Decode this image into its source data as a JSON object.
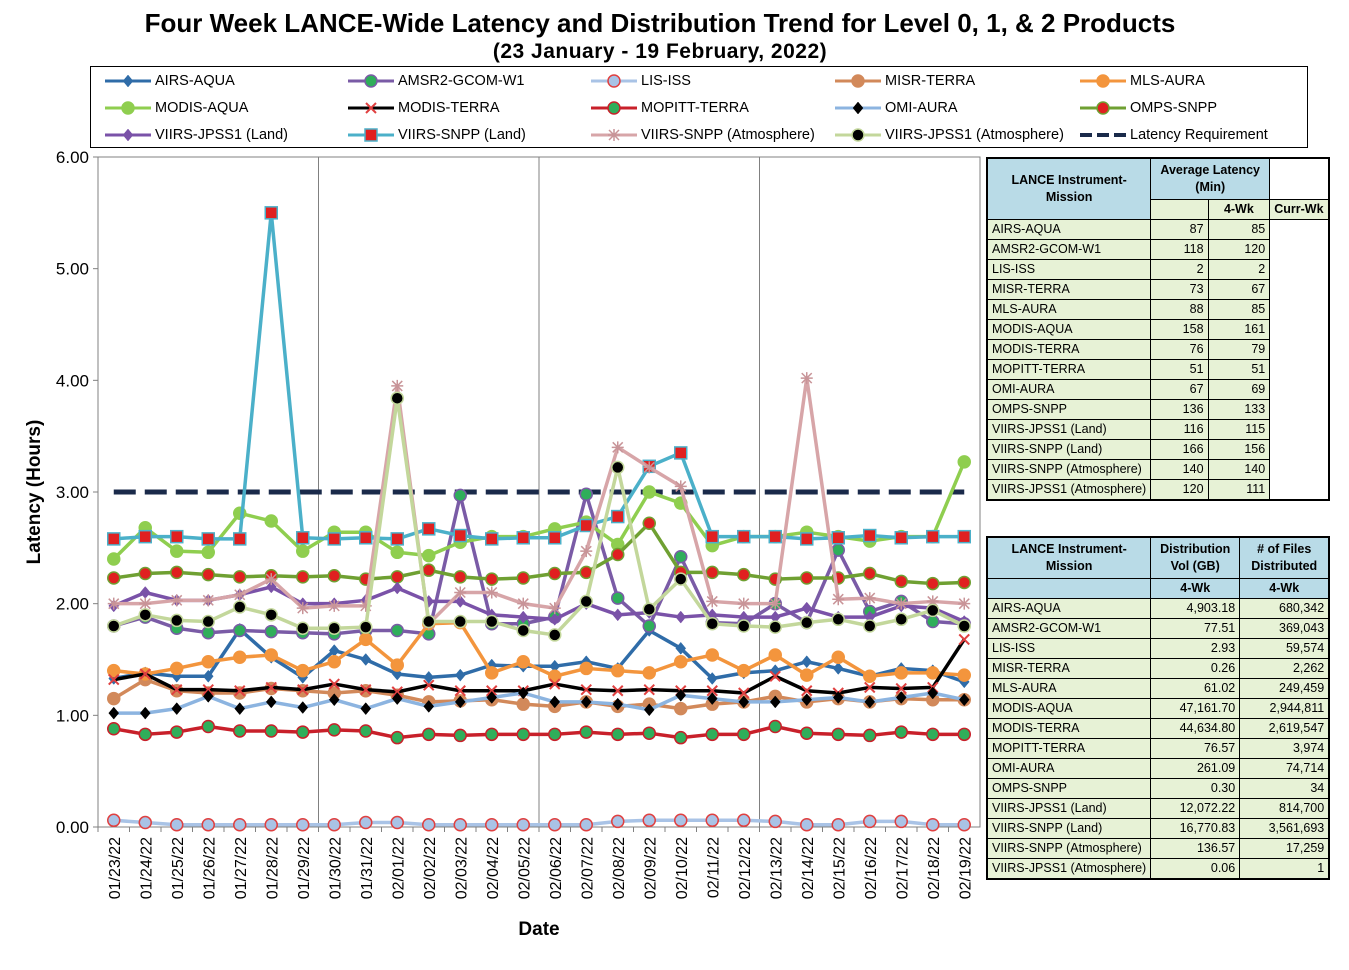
{
  "chart_data": {
    "type": "line",
    "title": "Four Week LANCE-Wide Latency and Distribution Trend for Level 0, 1, & 2 Products",
    "subtitle": "(23  January    -  19  February,  2022)",
    "xlabel": "Date",
    "ylabel": "Latency (Hours)",
    "ylim": [
      0,
      6
    ],
    "yticks": [
      "0.00",
      "1.00",
      "2.00",
      "3.00",
      "4.00",
      "5.00",
      "6.00"
    ],
    "grid": "vertical every 7 days",
    "legend_position": "top",
    "categories": [
      "01/23/22",
      "01/24/22",
      "01/25/22",
      "01/26/22",
      "01/27/22",
      "01/28/22",
      "01/29/22",
      "01/30/22",
      "01/31/22",
      "02/01/22",
      "02/02/22",
      "02/03/22",
      "02/04/22",
      "02/05/22",
      "02/06/22",
      "02/07/22",
      "02/08/22",
      "02/09/22",
      "02/10/22",
      "02/11/22",
      "02/12/22",
      "02/13/22",
      "02/14/22",
      "02/15/22",
      "02/16/22",
      "02/17/22",
      "02/18/22",
      "02/19/22"
    ],
    "series": [
      {
        "name": "AIRS-AQUA",
        "color": "#2f6ca8",
        "marker": "diamond",
        "markerColor": "#2f6ca8",
        "values": [
          1.33,
          1.38,
          1.35,
          1.35,
          1.77,
          1.52,
          1.34,
          1.58,
          1.5,
          1.37,
          1.34,
          1.36,
          1.45,
          1.44,
          1.44,
          1.48,
          1.42,
          1.76,
          1.6,
          1.33,
          1.38,
          1.4,
          1.48,
          1.42,
          1.35,
          1.42,
          1.4,
          1.3
        ]
      },
      {
        "name": "AMSR2-GCOM-W1",
        "color": "#7a5ba6",
        "marker": "circle",
        "markerColor": "#2fae5a",
        "values": [
          1.8,
          1.88,
          1.78,
          1.74,
          1.76,
          1.75,
          1.74,
          1.73,
          1.76,
          1.76,
          1.73,
          2.97,
          1.82,
          1.82,
          1.88,
          2.98,
          2.05,
          1.8,
          2.42,
          1.83,
          1.82,
          2.0,
          1.83,
          2.48,
          1.93,
          2.02,
          1.84,
          1.82
        ]
      },
      {
        "name": "LIS-ISS",
        "color": "#a9c3e6",
        "marker": "circle-open",
        "markerColor": "#e04040",
        "values": [
          0.06,
          0.04,
          0.02,
          0.02,
          0.02,
          0.02,
          0.02,
          0.02,
          0.04,
          0.04,
          0.02,
          0.02,
          0.02,
          0.02,
          0.02,
          0.02,
          0.05,
          0.06,
          0.06,
          0.06,
          0.06,
          0.05,
          0.02,
          0.02,
          0.05,
          0.05,
          0.02,
          0.02
        ]
      },
      {
        "name": "MISR-TERRA",
        "color": "#d2895a",
        "marker": "circle",
        "markerColor": "#d2895a",
        "values": [
          1.15,
          1.32,
          1.22,
          1.2,
          1.2,
          1.24,
          1.22,
          1.2,
          1.22,
          1.18,
          1.12,
          1.13,
          1.14,
          1.1,
          1.08,
          1.12,
          1.08,
          1.1,
          1.06,
          1.1,
          1.12,
          1.17,
          1.12,
          1.15,
          1.12,
          1.15,
          1.14,
          1.14
        ]
      },
      {
        "name": "MLS-AURA",
        "color": "#f3953d",
        "marker": "circle",
        "markerColor": "#f3953d",
        "values": [
          1.4,
          1.37,
          1.42,
          1.48,
          1.52,
          1.54,
          1.4,
          1.48,
          1.68,
          1.45,
          1.82,
          1.83,
          1.38,
          1.48,
          1.35,
          1.42,
          1.4,
          1.38,
          1.48,
          1.54,
          1.4,
          1.54,
          1.36,
          1.52,
          1.35,
          1.38,
          1.38,
          1.36
        ]
      },
      {
        "name": "MODIS-AQUA",
        "color": "#8fce4f",
        "marker": "circle",
        "markerColor": "#8fce4f",
        "values": [
          2.4,
          2.68,
          2.47,
          2.46,
          2.81,
          2.74,
          2.47,
          2.64,
          2.64,
          2.46,
          2.43,
          2.55,
          2.6,
          2.6,
          2.67,
          2.73,
          2.53,
          3.0,
          2.9,
          2.52,
          2.6,
          2.6,
          2.64,
          2.6,
          2.56,
          2.6,
          2.6,
          3.27
        ]
      },
      {
        "name": "MODIS-TERRA",
        "color": "#000000",
        "marker": "x",
        "markerColor": "#e04040",
        "values": [
          1.32,
          1.37,
          1.23,
          1.23,
          1.22,
          1.25,
          1.23,
          1.28,
          1.23,
          1.21,
          1.27,
          1.22,
          1.22,
          1.22,
          1.28,
          1.23,
          1.22,
          1.23,
          1.22,
          1.22,
          1.2,
          1.35,
          1.22,
          1.2,
          1.25,
          1.24,
          1.25,
          1.68
        ]
      },
      {
        "name": "MOPITT-TERRA",
        "color": "#c8202a",
        "marker": "circle",
        "markerColor": "#2fae5a",
        "values": [
          0.88,
          0.83,
          0.85,
          0.9,
          0.86,
          0.86,
          0.85,
          0.87,
          0.86,
          0.8,
          0.83,
          0.82,
          0.83,
          0.83,
          0.83,
          0.85,
          0.83,
          0.84,
          0.8,
          0.83,
          0.83,
          0.9,
          0.84,
          0.83,
          0.82,
          0.85,
          0.83,
          0.83
        ]
      },
      {
        "name": "OMI-AURA",
        "color": "#8cb4e0",
        "marker": "diamond",
        "markerColor": "#000000",
        "values": [
          1.02,
          1.02,
          1.06,
          1.17,
          1.06,
          1.12,
          1.07,
          1.14,
          1.06,
          1.15,
          1.08,
          1.12,
          1.16,
          1.2,
          1.12,
          1.12,
          1.1,
          1.05,
          1.18,
          1.15,
          1.12,
          1.12,
          1.14,
          1.16,
          1.12,
          1.16,
          1.2,
          1.14
        ]
      },
      {
        "name": "OMPS-SNPP",
        "color": "#6fa032",
        "marker": "circle",
        "markerColor": "#e02020",
        "values": [
          2.23,
          2.27,
          2.28,
          2.26,
          2.24,
          2.25,
          2.24,
          2.25,
          2.22,
          2.24,
          2.3,
          2.24,
          2.22,
          2.23,
          2.27,
          2.28,
          2.44,
          2.72,
          2.28,
          2.28,
          2.26,
          2.22,
          2.23,
          2.23,
          2.27,
          2.2,
          2.18,
          2.19
        ]
      },
      {
        "name": "VIIRS-JPSS1 (Land)",
        "color": "#7a52a8",
        "marker": "diamond",
        "markerColor": "#7a52a8",
        "values": [
          1.98,
          2.1,
          2.03,
          2.03,
          2.08,
          2.15,
          2.0,
          2.0,
          2.03,
          2.14,
          2.02,
          2.02,
          1.9,
          1.88,
          1.86,
          2.0,
          1.9,
          1.92,
          1.88,
          1.9,
          1.88,
          1.88,
          1.96,
          1.88,
          1.88,
          1.98,
          1.96,
          1.84
        ]
      },
      {
        "name": "VIIRS-SNPP (Land)",
        "color": "#4bb0c9",
        "marker": "square",
        "markerColor": "#e02020",
        "values": [
          2.58,
          2.6,
          2.6,
          2.58,
          2.58,
          5.5,
          2.59,
          2.58,
          2.59,
          2.58,
          2.67,
          2.61,
          2.58,
          2.59,
          2.59,
          2.7,
          2.78,
          3.23,
          3.35,
          2.6,
          2.6,
          2.6,
          2.58,
          2.59,
          2.61,
          2.59,
          2.6,
          2.6
        ]
      },
      {
        "name": "VIIRS-SNPP (Atmosphere)",
        "color": "#d7a5a8",
        "marker": "star",
        "markerColor": "#c89498",
        "values": [
          2.0,
          2.0,
          2.03,
          2.03,
          2.08,
          2.22,
          1.96,
          1.98,
          1.98,
          3.95,
          1.82,
          2.1,
          2.1,
          2.0,
          1.96,
          2.47,
          3.4,
          3.22,
          3.05,
          2.02,
          2.0,
          2.0,
          4.02,
          2.04,
          2.05,
          2.0,
          2.02,
          2.0
        ]
      },
      {
        "name": "VIIRS-JPSS1 (Atmosphere)",
        "color": "#c3d79b",
        "marker": "circle",
        "markerColor": "#000000",
        "values": [
          1.8,
          1.9,
          1.85,
          1.84,
          1.97,
          1.9,
          1.78,
          1.78,
          1.79,
          3.84,
          1.84,
          1.84,
          1.84,
          1.76,
          1.72,
          2.02,
          3.22,
          1.95,
          2.22,
          1.82,
          1.8,
          1.79,
          1.83,
          1.86,
          1.8,
          1.86,
          1.94,
          1.8
        ]
      },
      {
        "name": "Latency Requirement",
        "color": "#1a2a4a",
        "marker": "none",
        "markerColor": "#1a2a4a",
        "values": [
          3,
          3,
          3,
          3,
          3,
          3,
          3,
          3,
          3,
          3,
          3,
          3,
          3,
          3,
          3,
          3,
          3,
          3,
          3,
          3,
          3,
          3,
          3,
          3,
          3,
          3,
          3,
          3
        ]
      }
    ]
  },
  "latency_table": {
    "header1": "LANCE Instrument-Mission",
    "header2": "Average Latency (Min)",
    "col1": "4-Wk",
    "col2": "Curr-Wk",
    "rows": [
      [
        "AIRS-AQUA",
        "87",
        "85"
      ],
      [
        "AMSR2-GCOM-W1",
        "118",
        "120"
      ],
      [
        "LIS-ISS",
        "2",
        "2"
      ],
      [
        "MISR-TERRA",
        "73",
        "67"
      ],
      [
        "MLS-AURA",
        "88",
        "85"
      ],
      [
        "MODIS-AQUA",
        "158",
        "161"
      ],
      [
        "MODIS-TERRA",
        "76",
        "79"
      ],
      [
        "MOPITT-TERRA",
        "51",
        "51"
      ],
      [
        "OMI-AURA",
        "67",
        "69"
      ],
      [
        "OMPS-SNPP",
        "136",
        "133"
      ],
      [
        "VIIRS-JPSS1 (Land)",
        "116",
        "115"
      ],
      [
        "VIIRS-SNPP (Land)",
        "166",
        "156"
      ],
      [
        "VIIRS-SNPP (Atmosphere)",
        "140",
        "140"
      ],
      [
        "VIIRS-JPSS1 (Atmosphere)",
        "120",
        "111"
      ]
    ]
  },
  "distribution_table": {
    "header1": "LANCE Instrument-Mission",
    "header2": "Distribution Vol (GB)",
    "header3": "# of Files Distributed",
    "col1": "4-Wk",
    "col2": "4-Wk",
    "rows": [
      [
        "AIRS-AQUA",
        "4,903.18",
        "680,342"
      ],
      [
        "AMSR2-GCOM-W1",
        "77.51",
        "369,043"
      ],
      [
        "LIS-ISS",
        "2.93",
        "59,574"
      ],
      [
        "MISR-TERRA",
        "0.26",
        "2,262"
      ],
      [
        "MLS-AURA",
        "61.02",
        "249,459"
      ],
      [
        "MODIS-AQUA",
        "47,161.70",
        "2,944,811"
      ],
      [
        "MODIS-TERRA",
        "44,634.80",
        "2,619,547"
      ],
      [
        "MOPITT-TERRA",
        "76.57",
        "3,974"
      ],
      [
        "OMI-AURA",
        "261.09",
        "74,714"
      ],
      [
        "OMPS-SNPP",
        "0.30",
        "34"
      ],
      [
        "VIIRS-JPSS1 (Land)",
        "12,072.22",
        "814,700"
      ],
      [
        "VIIRS-SNPP (Land)",
        "16,770.83",
        "3,561,693"
      ],
      [
        "VIIRS-SNPP (Atmosphere)",
        "136.57",
        "17,259"
      ],
      [
        "VIIRS-JPSS1 (Atmosphere)",
        "0.06",
        "1"
      ]
    ]
  }
}
